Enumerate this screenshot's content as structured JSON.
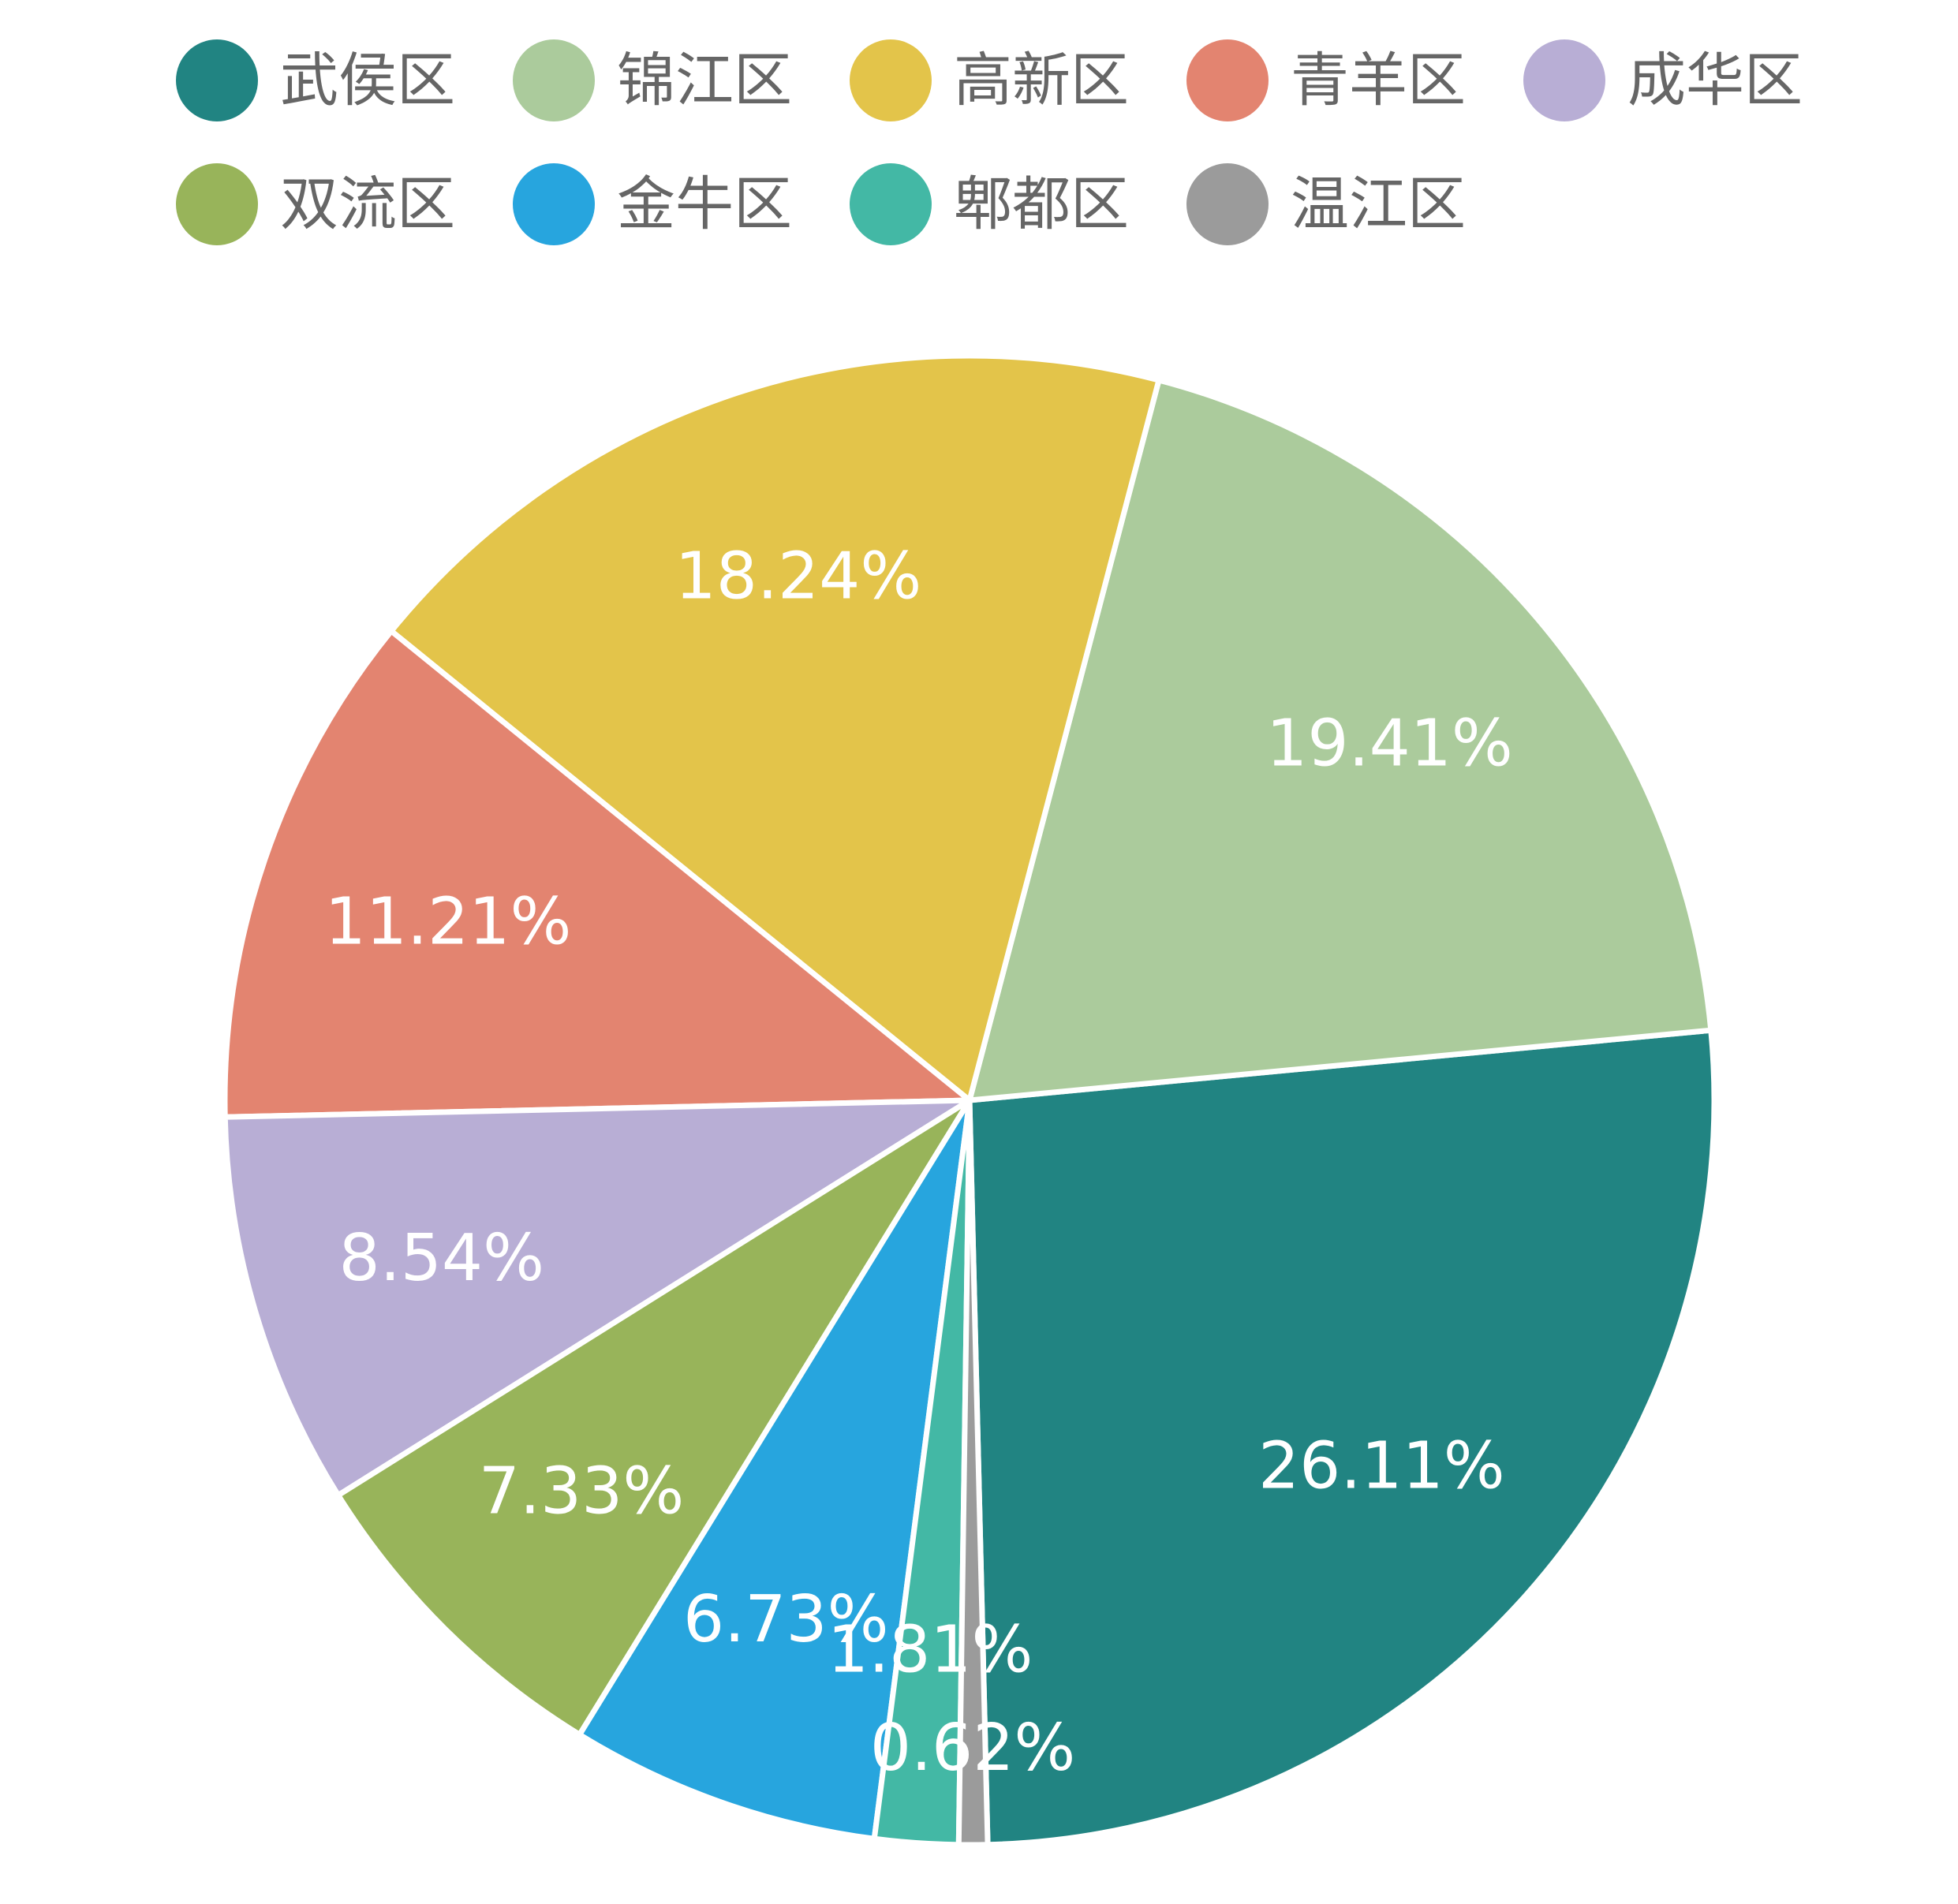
{
  "chart_data": {
    "type": "pie",
    "title": "",
    "legend_position": "top",
    "series": [
      {
        "name": "武侯区",
        "value": 26.11,
        "label": "26.11%",
        "color": "#218482"
      },
      {
        "name": "锦江区",
        "value": 19.41,
        "label": "19.41%",
        "color": "#abcb9c"
      },
      {
        "name": "高新区",
        "value": 18.24,
        "label": "18.24%",
        "color": "#e3c44a"
      },
      {
        "name": "青羊区",
        "value": 11.21,
        "label": "11.21%",
        "color": "#e38470"
      },
      {
        "name": "成华区",
        "value": 8.54,
        "label": "8.54%",
        "color": "#b8aed5"
      },
      {
        "name": "双流区",
        "value": 7.33,
        "label": "7.33%",
        "color": "#98b45a"
      },
      {
        "name": "金牛区",
        "value": 6.73,
        "label": "6.73%",
        "color": "#27a5de"
      },
      {
        "name": "郫都区",
        "value": 1.81,
        "label": "1.81%",
        "color": "#43b8a5"
      },
      {
        "name": "温江区",
        "value": 0.62,
        "label": "0.62%",
        "color": "#9b9b9b"
      }
    ]
  }
}
